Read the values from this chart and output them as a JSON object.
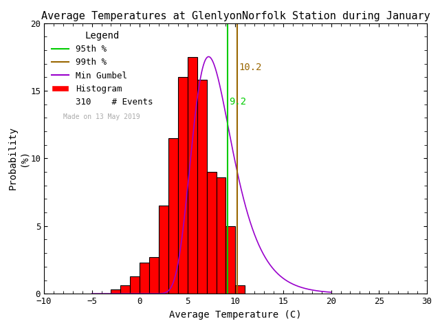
{
  "title": "Average Temperatures at GlenlyonNorfolk Station during January",
  "xlabel": "Average Temperature (C)",
  "ylabel": "Probability\n(%)",
  "xlim": [
    -10,
    30
  ],
  "ylim": [
    0,
    20
  ],
  "xticks": [
    -10,
    -5,
    0,
    5,
    10,
    15,
    20,
    25,
    30
  ],
  "yticks": [
    0,
    5,
    10,
    15,
    20
  ],
  "bin_left_edges": [
    -3,
    -2,
    -1,
    0,
    1,
    2,
    3,
    4,
    5,
    6,
    7,
    8,
    9,
    10
  ],
  "bin_heights": [
    0.3,
    0.6,
    1.3,
    2.3,
    2.7,
    6.5,
    11.5,
    16.0,
    17.5,
    15.8,
    9.0,
    8.6,
    5.0,
    0.6
  ],
  "bar_color": "#ff0000",
  "bar_edgecolor": "#000000",
  "gumbel_color": "#9900cc",
  "line_95_x": 9.2,
  "line_99_x": 10.2,
  "line_95_color": "#00cc00",
  "line_99_color": "#996600",
  "line_95_label": "9.2",
  "line_99_label": "10.2",
  "n_events": 310,
  "watermark": "Made on 13 May 2019",
  "background_color": "#ffffff",
  "gumbel_mu": 7.2,
  "gumbel_beta": 2.1,
  "title_fontsize": 11,
  "axis_fontsize": 10,
  "tick_fontsize": 9,
  "legend_fontsize": 9
}
